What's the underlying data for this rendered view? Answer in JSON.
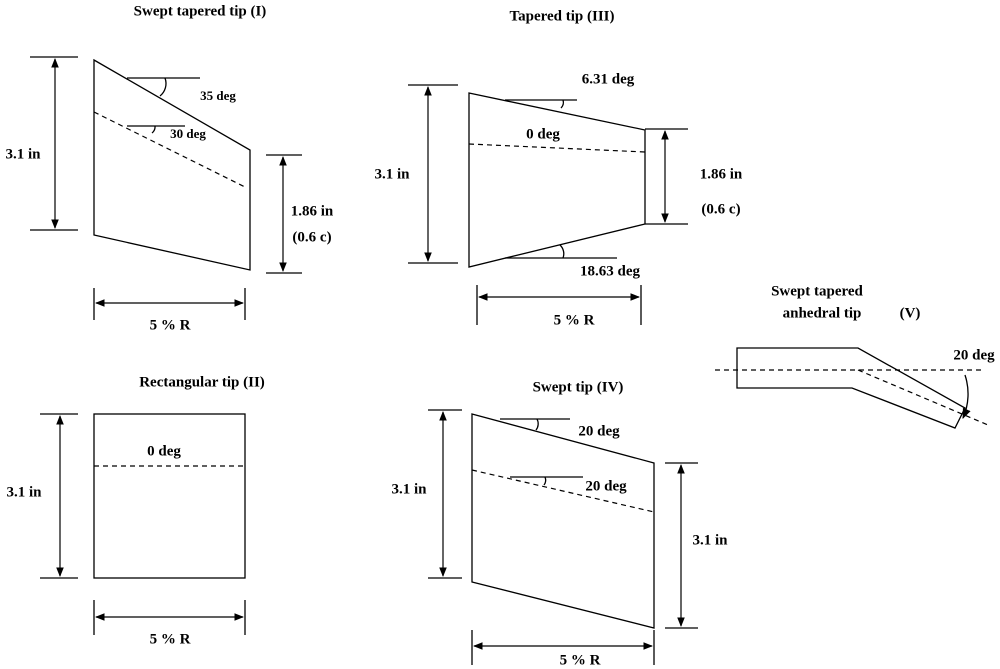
{
  "tip_1": {
    "title": "Swept tapered tip (I)",
    "sweep_angle": "35 deg",
    "quarter_chord_angle": "30 deg",
    "root_chord": "3.1 in",
    "tip_chord": "1.86 in",
    "tip_ratio": "(0.6 c)",
    "span": "5 % R"
  },
  "tip_3": {
    "title": "Tapered tip   (III)",
    "leading_edge_angle": "6.31 deg",
    "quarter_chord_angle": "0 deg",
    "root_chord": "3.1 in",
    "tip_chord": "1.86 in",
    "tip_ratio": "(0.6 c)",
    "trailing_edge_angle": "18.63 deg",
    "span": "5 % R"
  },
  "tip_5": {
    "title_line_1": "Swept tapered",
    "title_line_2": "anhedral tip",
    "title_number": "(V)",
    "anhedral_angle": "20 deg"
  },
  "tip_2": {
    "title": "Rectangular tip (II)",
    "quarter_chord_angle": "0 deg",
    "root_chord": "3.1 in",
    "span": "5 % R"
  },
  "tip_4": {
    "title": "Swept tip  (IV)",
    "leading_edge_angle": "20 deg",
    "quarter_chord_angle": "20 deg",
    "root_chord": "3.1 in",
    "tip_chord": "3.1 in",
    "span": "5 % R"
  }
}
